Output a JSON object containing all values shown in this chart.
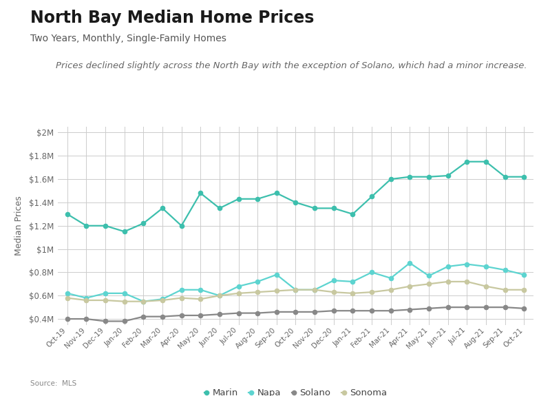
{
  "title": "North Bay Median Home Prices",
  "subtitle": "Two Years, Monthly, Single-Family Homes",
  "annotation": "Prices declined slightly across the North Bay with the exception of Solano, which had a minor increase.",
  "source": "Source:  MLS",
  "x_labels": [
    "Oct-19",
    "Nov-19",
    "Dec-19",
    "Jan-20",
    "Feb-20",
    "Mar-20",
    "Apr-20",
    "May-20",
    "Jun-20",
    "Jul-20",
    "Aug-20",
    "Sep-20",
    "Oct-20",
    "Nov-20",
    "Dec-20",
    "Jan-21",
    "Feb-21",
    "Mar-21",
    "Apr-21",
    "May-21",
    "Jun-21",
    "Jul-21",
    "Aug-21",
    "Sep-21",
    "Oct-21"
  ],
  "marin": [
    1.3,
    1.2,
    1.2,
    1.15,
    1.22,
    1.35,
    1.2,
    1.48,
    1.35,
    1.43,
    1.43,
    1.48,
    1.4,
    1.35,
    1.35,
    1.3,
    1.45,
    1.6,
    1.62,
    1.62,
    1.63,
    1.75,
    1.75,
    1.62,
    1.62
  ],
  "napa": [
    0.62,
    0.58,
    0.62,
    0.62,
    0.55,
    0.57,
    0.65,
    0.65,
    0.6,
    0.68,
    0.72,
    0.78,
    0.65,
    0.65,
    0.73,
    0.72,
    0.8,
    0.75,
    0.88,
    0.77,
    0.85,
    0.87,
    0.85,
    0.82,
    0.78
  ],
  "solano": [
    0.4,
    0.4,
    0.38,
    0.38,
    0.42,
    0.42,
    0.43,
    0.43,
    0.44,
    0.45,
    0.45,
    0.46,
    0.46,
    0.46,
    0.47,
    0.47,
    0.47,
    0.47,
    0.48,
    0.49,
    0.5,
    0.5,
    0.5,
    0.5,
    0.49
  ],
  "sonoma": [
    0.58,
    0.56,
    0.56,
    0.55,
    0.55,
    0.56,
    0.58,
    0.57,
    0.6,
    0.62,
    0.63,
    0.64,
    0.65,
    0.65,
    0.63,
    0.62,
    0.63,
    0.65,
    0.68,
    0.7,
    0.72,
    0.72,
    0.68,
    0.65,
    0.65
  ],
  "marin_color": "#3dbfad",
  "napa_color": "#5dd4d0",
  "solano_color": "#888888",
  "sonoma_color": "#c8c8a0",
  "ylim": [
    0.35,
    2.05
  ],
  "yticks": [
    0.4,
    0.6,
    0.8,
    1.0,
    1.2,
    1.4,
    1.6,
    1.8,
    2.0
  ],
  "background_color": "#ffffff",
  "grid_color": "#cccccc",
  "title_fontsize": 17,
  "subtitle_fontsize": 10,
  "annotation_fontsize": 9.5
}
